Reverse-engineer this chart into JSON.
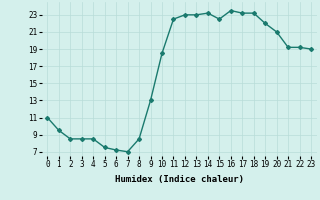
{
  "x": [
    0,
    1,
    2,
    3,
    4,
    5,
    6,
    7,
    8,
    9,
    10,
    11,
    12,
    13,
    14,
    15,
    16,
    17,
    18,
    19,
    20,
    21,
    22,
    23
  ],
  "y": [
    11,
    9.5,
    8.5,
    8.5,
    8.5,
    7.5,
    7.2,
    7.0,
    8.5,
    13.0,
    18.5,
    22.5,
    23.0,
    23.0,
    23.2,
    22.5,
    23.5,
    23.2,
    23.2,
    22.0,
    21.0,
    19.2,
    19.2,
    19.0
  ],
  "line_color": "#1a7a6e",
  "bg_color": "#d4f0ec",
  "grid_color": "#b8ddd8",
  "xlabel": "Humidex (Indice chaleur)",
  "ylabel_ticks": [
    7,
    9,
    11,
    13,
    15,
    17,
    19,
    21,
    23
  ],
  "xlim": [
    -0.5,
    23.5
  ],
  "ylim": [
    6.5,
    24.5
  ],
  "xticks": [
    0,
    1,
    2,
    3,
    4,
    5,
    6,
    7,
    8,
    9,
    10,
    11,
    12,
    13,
    14,
    15,
    16,
    17,
    18,
    19,
    20,
    21,
    22,
    23
  ],
  "axis_fontsize": 6.5,
  "tick_fontsize": 5.5,
  "marker": "D",
  "markersize": 2.0,
  "linewidth": 1.0
}
